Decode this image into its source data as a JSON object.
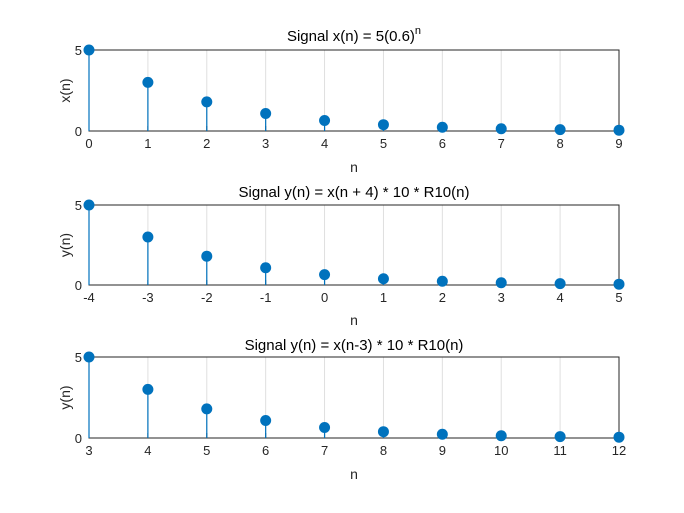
{
  "chart_data": [
    {
      "type": "stem",
      "title_main": "Signal  x(n)  =  5(0.6)",
      "title_sup": "n",
      "xlabel": "n",
      "ylabel": "x(n)",
      "xlim": [
        0,
        9
      ],
      "ylim": [
        0,
        5
      ],
      "x": [
        0,
        1,
        2,
        3,
        4,
        5,
        6,
        7,
        8,
        9
      ],
      "values": [
        5,
        3,
        1.8,
        1.08,
        0.648,
        0.389,
        0.233,
        0.14,
        0.084,
        0.05
      ],
      "xticks": [
        "0",
        "1",
        "2",
        "3",
        "4",
        "5",
        "6",
        "7",
        "8",
        "9"
      ],
      "yticks": [
        "0",
        "5"
      ],
      "grid": "x"
    },
    {
      "type": "stem",
      "title_main": "Signal y(n) = x(n + 4) * 10 * R10(n)",
      "title_sup": "",
      "xlabel": "n",
      "ylabel": "y(n)",
      "xlim": [
        -4,
        5
      ],
      "ylim": [
        0,
        5
      ],
      "x": [
        -4,
        -3,
        -2,
        -1,
        0,
        1,
        2,
        3,
        4,
        5
      ],
      "values": [
        5,
        3,
        1.8,
        1.08,
        0.648,
        0.389,
        0.233,
        0.14,
        0.084,
        0.05
      ],
      "xticks": [
        "-4",
        "-3",
        "-2",
        "-1",
        "0",
        "1",
        "2",
        "3",
        "4",
        "5"
      ],
      "yticks": [
        "0",
        "5"
      ],
      "grid": "x"
    },
    {
      "type": "stem",
      "title_main": "Signal y(n) = x(n-3) * 10 * R10(n)",
      "title_sup": "",
      "xlabel": "n",
      "ylabel": "y(n)",
      "xlim": [
        3,
        12
      ],
      "ylim": [
        0,
        5
      ],
      "x": [
        3,
        4,
        5,
        6,
        7,
        8,
        9,
        10,
        11,
        12
      ],
      "values": [
        5,
        3,
        1.8,
        1.08,
        0.648,
        0.389,
        0.233,
        0.14,
        0.084,
        0.05
      ],
      "xticks": [
        "3",
        "4",
        "5",
        "6",
        "7",
        "8",
        "9",
        "10",
        "11",
        "12"
      ],
      "yticks": [
        "0",
        "5"
      ],
      "grid": "x"
    }
  ],
  "colors": {
    "marker": "#0072bd",
    "axis": "#262626",
    "grid": "#dfdfdf"
  }
}
